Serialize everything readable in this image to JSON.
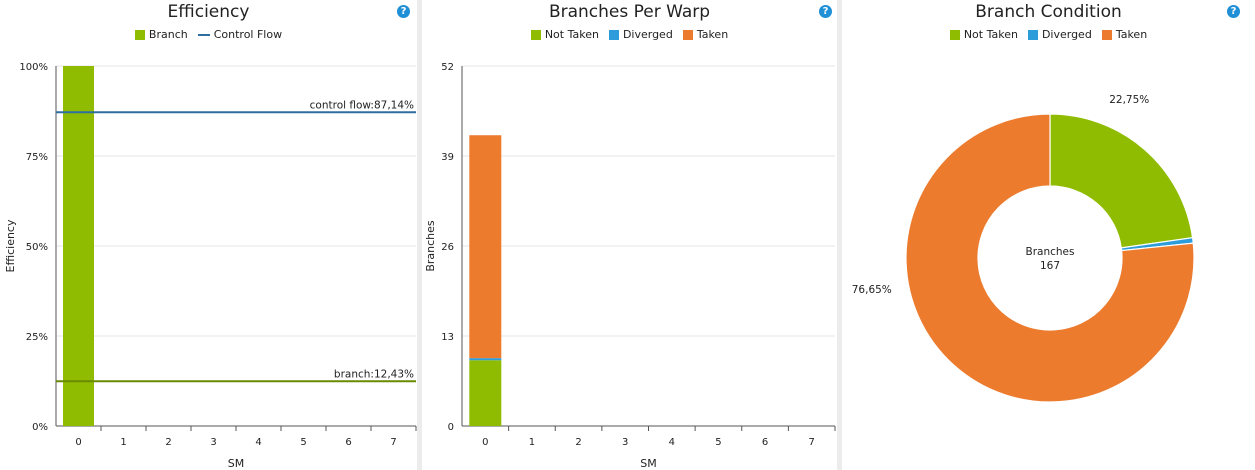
{
  "colors": {
    "not_taken": "#8fbc00",
    "diverged": "#2d9cdb",
    "taken": "#ec7b2e",
    "control_flow": "#2f6f9f",
    "branch_line": "#6a8a00",
    "branch_bar": "#8fbc00",
    "grid": "#e6e6e6",
    "help": "#1f8fd6"
  },
  "help_icon": "?",
  "chart_data": [
    {
      "type": "bar",
      "title": "Efficiency",
      "xlabel": "SM",
      "ylabel": "Efficiency",
      "categories": [
        "0",
        "1",
        "2",
        "3",
        "4",
        "5",
        "6",
        "7"
      ],
      "yticks": [
        "0%",
        "25%",
        "50%",
        "75%",
        "100%"
      ],
      "ylim": [
        0,
        100
      ],
      "series": [
        {
          "name": "Branch",
          "values": [
            100,
            0,
            0,
            0,
            0,
            0,
            0,
            0
          ]
        }
      ],
      "lines": [
        {
          "name": "Control Flow",
          "value": 87.14,
          "label": "control flow:87,14%"
        },
        {
          "name": "branch",
          "value": 12.43,
          "label": "branch:12,43%"
        }
      ],
      "legend": [
        {
          "label": "Branch",
          "kind": "swatch"
        },
        {
          "label": "Control Flow",
          "kind": "line"
        }
      ],
      "grid": true,
      "legend_position": "top"
    },
    {
      "type": "bar",
      "title": "Branches Per Warp",
      "xlabel": "SM",
      "ylabel": "Branches",
      "categories": [
        "0",
        "1",
        "2",
        "3",
        "4",
        "5",
        "6",
        "7"
      ],
      "yticks": [
        "0",
        "13",
        "26",
        "39",
        "52"
      ],
      "ylim": [
        0,
        52
      ],
      "stacked": true,
      "series": [
        {
          "name": "Not Taken",
          "values": [
            9.5,
            0,
            0,
            0,
            0,
            0,
            0,
            0
          ]
        },
        {
          "name": "Diverged",
          "values": [
            0.3,
            0,
            0,
            0,
            0,
            0,
            0,
            0
          ]
        },
        {
          "name": "Taken",
          "values": [
            32.2,
            0,
            0,
            0,
            0,
            0,
            0,
            0
          ]
        }
      ],
      "legend": [
        "Not Taken",
        "Diverged",
        "Taken"
      ],
      "grid": true,
      "legend_position": "top"
    },
    {
      "type": "pie",
      "title": "Branch Condition",
      "donut": true,
      "center_label": "Branches",
      "center_value": "167",
      "slices": [
        {
          "name": "Not Taken",
          "value": 22.75,
          "label": "22,75%"
        },
        {
          "name": "Diverged",
          "value": 0.6,
          "label": ""
        },
        {
          "name": "Taken",
          "value": 76.65,
          "label": "76,65%"
        }
      ],
      "legend": [
        "Not Taken",
        "Diverged",
        "Taken"
      ],
      "legend_position": "top"
    }
  ]
}
